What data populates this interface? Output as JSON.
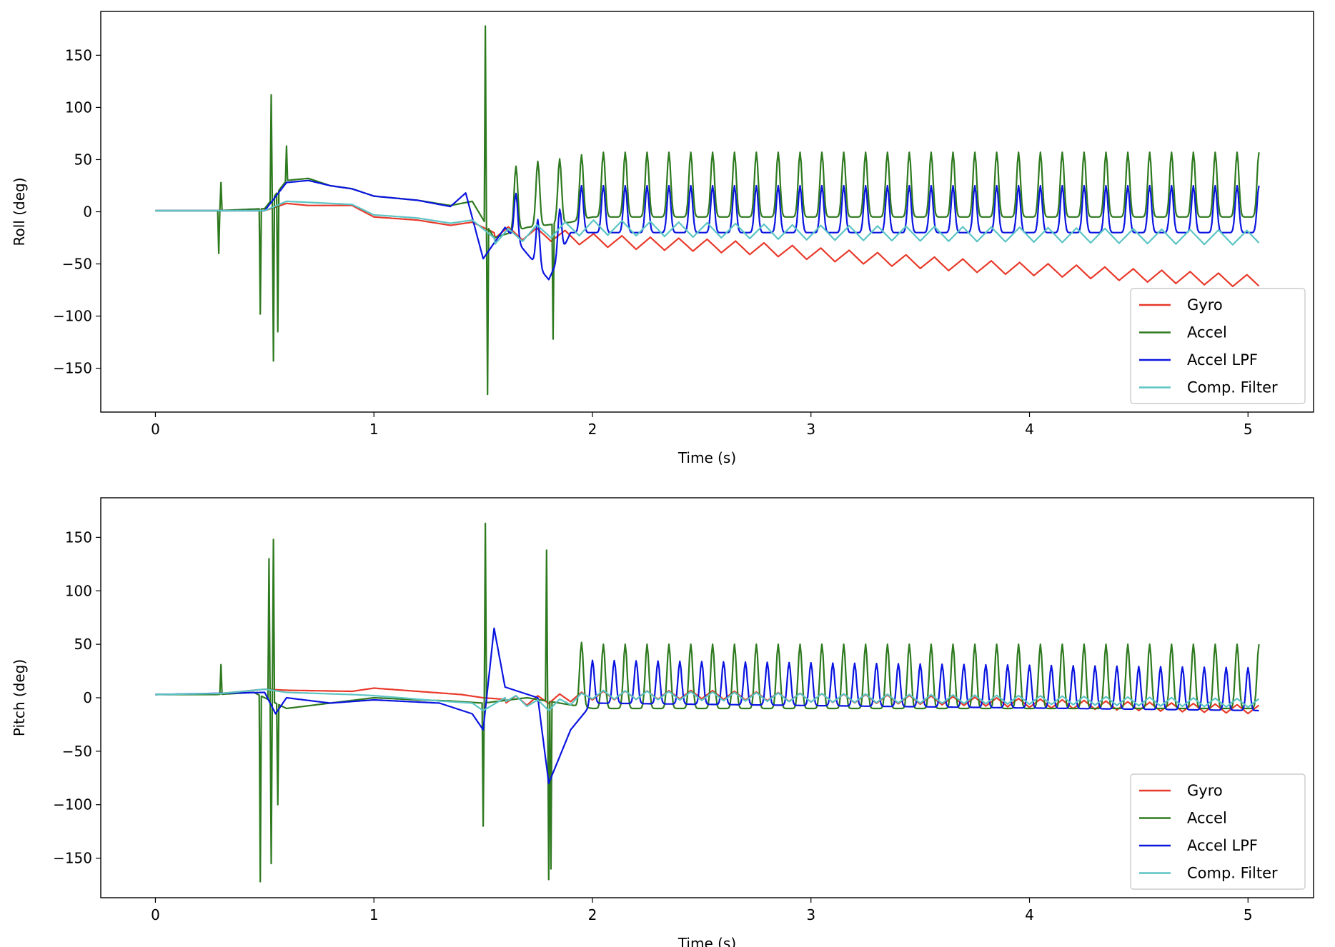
{
  "chart_data": [
    {
      "type": "line",
      "title": "",
      "xlabel": "Time (s)",
      "ylabel": "Roll (deg)",
      "xlim": [
        -0.25,
        5.3
      ],
      "ylim": [
        -192,
        192
      ],
      "xticks": [
        0,
        1,
        2,
        3,
        4,
        5
      ],
      "yticks": [
        -150,
        -100,
        -50,
        0,
        50,
        100,
        150
      ],
      "grid": false,
      "legend_position": "lower right",
      "series": [
        {
          "name": "Gyro",
          "color": "#e8392a",
          "points": [
            [
              0,
              1
            ],
            [
              0.3,
              1
            ],
            [
              0.5,
              1
            ],
            [
              0.6,
              8
            ],
            [
              0.7,
              6
            ],
            [
              0.9,
              6
            ],
            [
              1.0,
              -5
            ],
            [
              1.2,
              -8
            ],
            [
              1.35,
              -13
            ],
            [
              1.45,
              -10
            ],
            [
              1.55,
              -20
            ],
            [
              1.8,
              -22
            ],
            [
              2.0,
              -27
            ],
            [
              2.2,
              -30
            ],
            [
              2.5,
              -32
            ],
            [
              2.8,
              -36
            ],
            [
              3.0,
              -40
            ],
            [
              3.3,
              -45
            ],
            [
              3.6,
              -50
            ],
            [
              3.9,
              -54
            ],
            [
              4.2,
              -57
            ],
            [
              4.5,
              -61
            ],
            [
              4.8,
              -64
            ],
            [
              5.05,
              -67
            ]
          ],
          "osc": {
            "start": 1.55,
            "amp": 6,
            "period": 0.13
          }
        },
        {
          "name": "Accel",
          "color": "#2e7a1f",
          "points": [
            [
              0,
              1
            ],
            [
              0.28,
              1
            ],
            [
              0.5,
              3
            ],
            [
              0.6,
              30
            ],
            [
              0.7,
              32
            ],
            [
              0.8,
              25
            ],
            [
              0.9,
              22
            ],
            [
              1.0,
              15
            ],
            [
              1.2,
              11
            ],
            [
              1.35,
              6
            ],
            [
              1.45,
              10
            ],
            [
              1.55,
              -25
            ],
            [
              1.7,
              -15
            ],
            [
              1.9,
              -10
            ],
            [
              2.0,
              -5
            ],
            [
              5.05,
              -5
            ]
          ],
          "spikes": [
            [
              0.29,
              -40
            ],
            [
              0.3,
              28
            ],
            [
              0.48,
              -98
            ],
            [
              0.53,
              112
            ],
            [
              0.54,
              -143
            ],
            [
              0.56,
              -115
            ],
            [
              0.6,
              63
            ],
            [
              1.51,
              178
            ],
            [
              1.52,
              -175
            ],
            [
              1.82,
              -122
            ]
          ],
          "osc": {
            "start": 1.6,
            "amp": 62,
            "period": 0.1,
            "min": -40
          }
        },
        {
          "name": "Accel LPF",
          "color": "#0a14e0",
          "points": [
            [
              0,
              1
            ],
            [
              0.5,
              1
            ],
            [
              0.6,
              28
            ],
            [
              0.7,
              30
            ],
            [
              0.8,
              25
            ],
            [
              0.9,
              22
            ],
            [
              1.0,
              15
            ],
            [
              1.2,
              11
            ],
            [
              1.35,
              5
            ],
            [
              1.42,
              18
            ],
            [
              1.5,
              -45
            ],
            [
              1.6,
              -15
            ],
            [
              1.8,
              -65
            ],
            [
              1.9,
              -20
            ],
            [
              5.05,
              -20
            ]
          ],
          "osc": {
            "start": 1.6,
            "amp": 45,
            "period": 0.1,
            "min": -25
          }
        },
        {
          "name": "Comp. Filter",
          "color": "#5cc4c4",
          "points": [
            [
              0,
              1
            ],
            [
              0.5,
              1
            ],
            [
              0.6,
              10
            ],
            [
              0.7,
              9
            ],
            [
              0.9,
              7
            ],
            [
              1.0,
              -3
            ],
            [
              1.2,
              -6
            ],
            [
              1.35,
              -11
            ],
            [
              1.45,
              -8
            ],
            [
              1.55,
              -25
            ],
            [
              1.8,
              -18
            ],
            [
              2.0,
              -15
            ],
            [
              3.0,
              -20
            ],
            [
              4.0,
              -22
            ],
            [
              5.05,
              -25
            ]
          ],
          "osc": {
            "start": 1.55,
            "amp": 7,
            "period": 0.13
          }
        }
      ]
    },
    {
      "type": "line",
      "title": "",
      "xlabel": "Time (s)",
      "ylabel": "Pitch (deg)",
      "xlim": [
        -0.25,
        5.3
      ],
      "ylim": [
        -187,
        187
      ],
      "xticks": [
        0,
        1,
        2,
        3,
        4,
        5
      ],
      "yticks": [
        -150,
        -100,
        -50,
        0,
        50,
        100,
        150
      ],
      "grid": false,
      "legend_position": "lower right",
      "series": [
        {
          "name": "Gyro",
          "color": "#e8392a",
          "points": [
            [
              0,
              3
            ],
            [
              0.3,
              4
            ],
            [
              0.5,
              8
            ],
            [
              0.6,
              7
            ],
            [
              0.9,
              6
            ],
            [
              1.0,
              9
            ],
            [
              1.2,
              6
            ],
            [
              1.4,
              3
            ],
            [
              1.5,
              0
            ],
            [
              1.7,
              -3
            ],
            [
              2.0,
              2
            ],
            [
              2.5,
              3
            ],
            [
              3.0,
              0
            ],
            [
              3.5,
              -2
            ],
            [
              4.0,
              -5
            ],
            [
              4.5,
              -8
            ],
            [
              5.05,
              -11
            ]
          ],
          "osc": {
            "start": 1.6,
            "amp": 4,
            "period": 0.1
          }
        },
        {
          "name": "Accel",
          "color": "#2e7a1f",
          "points": [
            [
              0,
              3
            ],
            [
              0.28,
              3
            ],
            [
              0.45,
              5
            ],
            [
              0.6,
              -10
            ],
            [
              0.8,
              -5
            ],
            [
              1.0,
              0
            ],
            [
              1.2,
              -2
            ],
            [
              1.35,
              -3
            ],
            [
              1.5,
              -5
            ],
            [
              1.7,
              0
            ],
            [
              2.0,
              -10
            ],
            [
              5.05,
              -10
            ]
          ],
          "spikes": [
            [
              0.3,
              31
            ],
            [
              0.48,
              -172
            ],
            [
              0.52,
              130
            ],
            [
              0.53,
              -155
            ],
            [
              0.54,
              148
            ],
            [
              0.56,
              -100
            ],
            [
              1.5,
              -120
            ],
            [
              1.51,
              163
            ],
            [
              1.79,
              138
            ],
            [
              1.8,
              -170
            ],
            [
              1.81,
              -160
            ]
          ],
          "osc": {
            "start": 1.9,
            "amp": 60,
            "period": 0.1,
            "min": -30
          }
        },
        {
          "name": "Accel LPF",
          "color": "#0a14e0",
          "points": [
            [
              0,
              3
            ],
            [
              0.5,
              5
            ],
            [
              0.55,
              -15
            ],
            [
              0.6,
              0
            ],
            [
              0.8,
              -5
            ],
            [
              1.0,
              -2
            ],
            [
              1.3,
              -5
            ],
            [
              1.45,
              -15
            ],
            [
              1.5,
              -30
            ],
            [
              1.55,
              65
            ],
            [
              1.6,
              10
            ],
            [
              1.75,
              0
            ],
            [
              1.8,
              -80
            ],
            [
              1.9,
              -30
            ],
            [
              2.0,
              -5
            ],
            [
              5.05,
              -12
            ]
          ],
          "osc": {
            "start": 1.95,
            "amp": 40,
            "period": 0.1,
            "min": -20
          }
        },
        {
          "name": "Comp. Filter",
          "color": "#5cc4c4",
          "points": [
            [
              0,
              3
            ],
            [
              0.3,
              4
            ],
            [
              0.5,
              8
            ],
            [
              0.6,
              5
            ],
            [
              0.9,
              3
            ],
            [
              1.0,
              2
            ],
            [
              1.3,
              -3
            ],
            [
              1.45,
              -5
            ],
            [
              1.5,
              -12
            ],
            [
              1.6,
              0
            ],
            [
              1.8,
              -8
            ],
            [
              2.0,
              3
            ],
            [
              3.0,
              0
            ],
            [
              4.0,
              -2
            ],
            [
              5.05,
              -5
            ]
          ],
          "osc": {
            "start": 1.6,
            "amp": 4,
            "period": 0.1
          }
        }
      ]
    }
  ]
}
